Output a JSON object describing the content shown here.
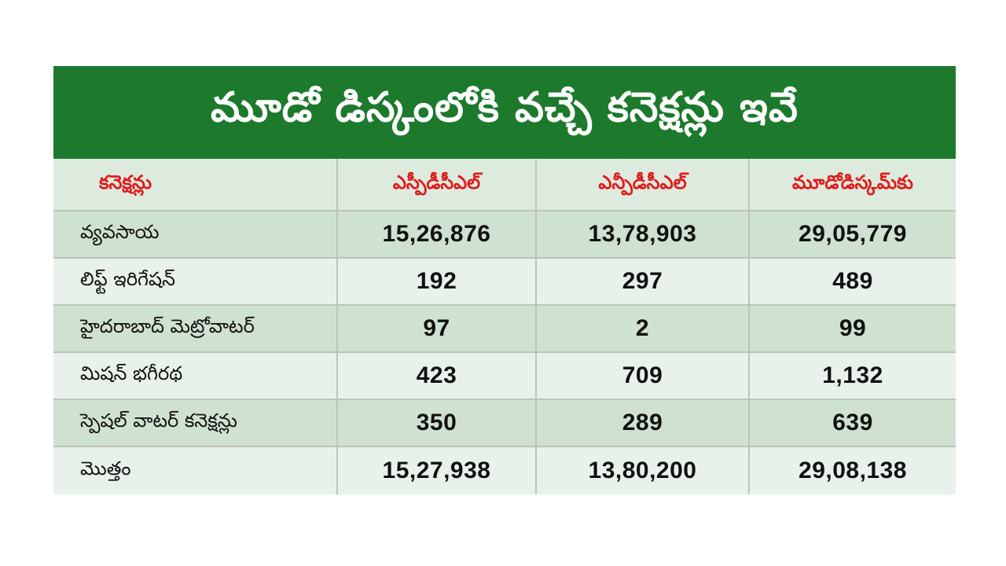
{
  "title": "మూడో డిస్కంలోకి వచ్చే కనెక్షన్లు ఇవే",
  "headers": [
    "కనెక్షన్లు",
    "ఎస్పీడీసీఎల్",
    "ఎన్పీడీసీఎల్",
    "మూడోడిస్కమ్‌కు"
  ],
  "rows": [
    {
      "label": "వ్యవసాయ",
      "v1": "15,26,876",
      "v2": "13,78,903",
      "v3": "29,05,779"
    },
    {
      "label": "లిఫ్ట్ ఇరిగేషన్",
      "v1": "192",
      "v2": "297",
      "v3": "489"
    },
    {
      "label": "హైదరాబాద్ మెట్రోవాటర్",
      "v1": "97",
      "v2": "2",
      "v3": "99"
    },
    {
      "label": "మిషన్ భగీరథ",
      "v1": "423",
      "v2": "709",
      "v3": "1,132"
    },
    {
      "label": "స్పెషల్ వాటర్ కనెక్షన్లు",
      "v1": "350",
      "v2": "289",
      "v3": "639"
    },
    {
      "label": "మొత్తం",
      "v1": "15,27,938",
      "v2": "13,80,200",
      "v3": "29,08,138"
    }
  ]
}
